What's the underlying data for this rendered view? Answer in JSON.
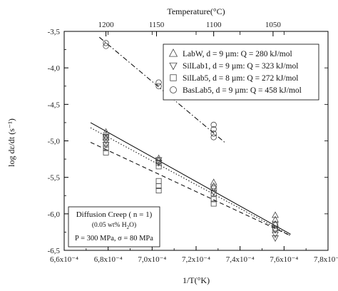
{
  "chart_data": {
    "type": "scatter",
    "xlabel": "1/T(°K)",
    "ylabel": "log dε/dt (s⁻¹)",
    "top_axis_label": "Temperature(°C)",
    "xlim": [
      0.00066,
      0.00078
    ],
    "ylim": [
      -6.5,
      -3.5
    ],
    "x_ticks": [
      0.00066,
      0.00068,
      0.0007,
      0.00072,
      0.00074,
      0.00076,
      0.00078
    ],
    "x_tick_labels": [
      "6,6x10⁻⁴",
      "6,8x10⁻⁴",
      "7,0x10⁻⁴",
      "7,2x10⁻⁴",
      "7,4x10⁻⁴",
      "7,6x10⁻⁴",
      "7,8x10⁻⁴"
    ],
    "y_ticks": [
      -6.5,
      -6.0,
      -5.5,
      -5.0,
      -4.5,
      -4.0,
      -3.5
    ],
    "y_tick_labels": [
      "-6,5",
      "-6,0",
      "-5,5",
      "-5,0",
      "-4,5",
      "-4,0",
      "-3,5"
    ],
    "top_ticks": [
      {
        "x": 0.000679,
        "label": "1200"
      },
      {
        "x": 0.000702,
        "label": "1150"
      },
      {
        "x": 0.000728,
        "label": "1100"
      },
      {
        "x": 0.000755,
        "label": "1050"
      }
    ],
    "grid": false,
    "legend_position": "top-right",
    "series": [
      {
        "name": "LabW, d = 9 µm: Q = 280 kJ/mol",
        "marker": "triangle-up",
        "line": "solid",
        "points": [
          [
            0.000679,
            -4.88
          ],
          [
            0.000679,
            -4.92
          ],
          [
            0.000679,
            -4.96
          ],
          [
            0.000703,
            -5.24
          ],
          [
            0.000703,
            -5.27
          ],
          [
            0.000728,
            -5.57
          ],
          [
            0.000728,
            -5.62
          ],
          [
            0.000756,
            -6.02
          ],
          [
            0.000756,
            -6.08
          ],
          [
            0.000756,
            -6.14
          ]
        ],
        "fit": [
          [
            0.000672,
            -4.75
          ],
          [
            0.000763,
            -6.28
          ]
        ]
      },
      {
        "name": "SilLab1, d = 9 µm: Q = 323 kJ/mol",
        "marker": "triangle-down",
        "line": "dot",
        "points": [
          [
            0.000679,
            -4.95
          ],
          [
            0.000679,
            -5.0
          ],
          [
            0.000679,
            -5.05
          ],
          [
            0.000703,
            -5.26
          ],
          [
            0.000703,
            -5.3
          ],
          [
            0.000728,
            -5.65
          ],
          [
            0.000728,
            -5.7
          ],
          [
            0.000756,
            -6.22
          ],
          [
            0.000756,
            -6.28
          ],
          [
            0.000756,
            -6.33
          ]
        ],
        "fit": [
          [
            0.000672,
            -4.82
          ],
          [
            0.000763,
            -6.3
          ]
        ]
      },
      {
        "name": "SilLab5, d = 8 µm: Q = 272 kJ/mol",
        "marker": "square",
        "line": "dash",
        "points": [
          [
            0.000679,
            -5.05
          ],
          [
            0.000679,
            -5.1
          ],
          [
            0.000679,
            -5.16
          ],
          [
            0.000703,
            -5.3
          ],
          [
            0.000703,
            -5.35
          ],
          [
            0.000703,
            -5.55
          ],
          [
            0.000703,
            -5.62
          ],
          [
            0.000703,
            -5.68
          ],
          [
            0.000728,
            -5.72
          ],
          [
            0.000728,
            -5.8
          ],
          [
            0.000728,
            -5.86
          ],
          [
            0.000756,
            -6.15
          ],
          [
            0.000756,
            -6.2
          ]
        ],
        "fit": [
          [
            0.000672,
            -5.02
          ],
          [
            0.000763,
            -6.3
          ]
        ]
      },
      {
        "name": "BasLab5, d = 9 µm: Q = 458 kJ/mol",
        "marker": "circle",
        "line": "dashdot",
        "points": [
          [
            0.000679,
            -3.66
          ],
          [
            0.000679,
            -3.7
          ],
          [
            0.000703,
            -4.2
          ],
          [
            0.000703,
            -4.25
          ],
          [
            0.000728,
            -4.78
          ],
          [
            0.000728,
            -4.84
          ],
          [
            0.000728,
            -4.9
          ],
          [
            0.000728,
            -4.95
          ]
        ],
        "fit": [
          [
            0.000676,
            -3.58
          ],
          [
            0.000733,
            -5.02
          ]
        ]
      }
    ],
    "annotation": {
      "line1": "Diffusion Creep ( n = 1)",
      "line2_pre": "(0.05 wt% H",
      "line2_sub": "2",
      "line2_post": "O)",
      "line3": "P = 300 MPa, σ = 80 MPa"
    }
  }
}
